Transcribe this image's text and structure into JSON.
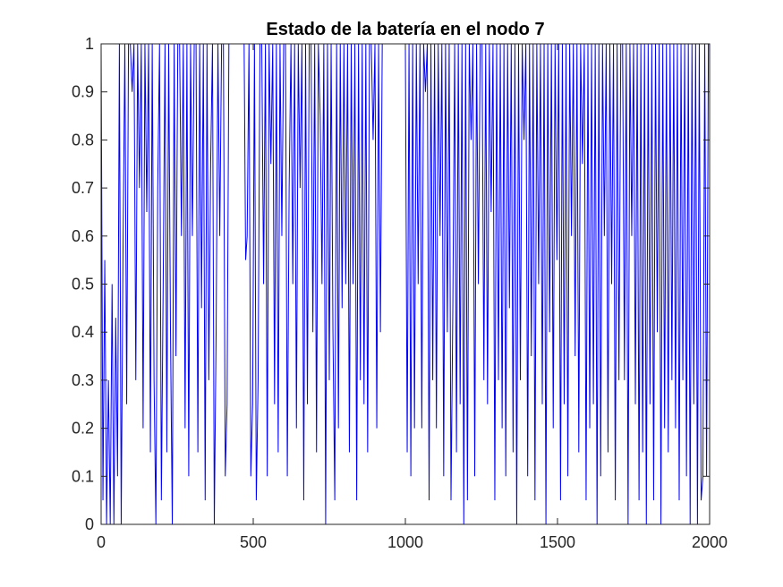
{
  "chart_data": {
    "type": "line",
    "title": "Estado de la batería en el nodo 7",
    "xlabel": "",
    "ylabel": "",
    "xlim": [
      0,
      2000
    ],
    "ylim": [
      0,
      1
    ],
    "x_ticks": [
      "0",
      "500",
      "1000",
      "1500",
      "2000"
    ],
    "y_ticks": [
      "0",
      "0.1",
      "0.2",
      "0.3",
      "0.4",
      "0.5",
      "0.6",
      "0.7",
      "0.8",
      "0.9",
      "1"
    ],
    "grid": false,
    "legend": "none",
    "series_color": "#0000ff",
    "series": [
      {
        "x": [
          0,
          6,
          12,
          18,
          24,
          30,
          36,
          42,
          48,
          54,
          60,
          66,
          72,
          78,
          84,
          90,
          96,
          102,
          108,
          114,
          120,
          126,
          132,
          138,
          144,
          150,
          156,
          162,
          168,
          174,
          180,
          186,
          192,
          198,
          204,
          210,
          216,
          222,
          228,
          234,
          240,
          246,
          252,
          258,
          264,
          270,
          276,
          282,
          288,
          294,
          300,
          306,
          312,
          318,
          324,
          330,
          336,
          342,
          348,
          354,
          360,
          366,
          372,
          378,
          384,
          390,
          396,
          402,
          408,
          414,
          420,
          430,
          440,
          450,
          460,
          470,
          475,
          480,
          486,
          492,
          498,
          504,
          510,
          516,
          522,
          528,
          534,
          540,
          546,
          552,
          558,
          564,
          570,
          576,
          582,
          588,
          594,
          600,
          606,
          612,
          618,
          624,
          630,
          636,
          642,
          648,
          654,
          660,
          666,
          672,
          678,
          684,
          690,
          696,
          702,
          708,
          714,
          720,
          726,
          732,
          738,
          744,
          750,
          756,
          762,
          768,
          774,
          780,
          786,
          792,
          798,
          804,
          810,
          816,
          822,
          828,
          834,
          840,
          846,
          852,
          858,
          864,
          870,
          876,
          882,
          888,
          894,
          900,
          906,
          912,
          918,
          924,
          930,
          940,
          950,
          960,
          970,
          980,
          990,
          1000,
          1006,
          1012,
          1018,
          1024,
          1030,
          1036,
          1042,
          1048,
          1054,
          1060,
          1066,
          1072,
          1078,
          1084,
          1090,
          1096,
          1102,
          1108,
          1114,
          1120,
          1126,
          1132,
          1138,
          1144,
          1150,
          1156,
          1162,
          1168,
          1174,
          1180,
          1186,
          1192,
          1198,
          1204,
          1210,
          1216,
          1222,
          1228,
          1234,
          1240,
          1246,
          1252,
          1258,
          1264,
          1270,
          1276,
          1282,
          1288,
          1294,
          1300,
          1306,
          1312,
          1318,
          1324,
          1330,
          1336,
          1342,
          1348,
          1354,
          1360,
          1366,
          1372,
          1378,
          1384,
          1390,
          1396,
          1402,
          1408,
          1414,
          1420,
          1426,
          1432,
          1438,
          1444,
          1450,
          1456,
          1462,
          1468,
          1474,
          1480,
          1486,
          1492,
          1498,
          1504,
          1510,
          1516,
          1522,
          1528,
          1534,
          1540,
          1546,
          1552,
          1558,
          1564,
          1570,
          1576,
          1582,
          1588,
          1594,
          1600,
          1606,
          1612,
          1618,
          1624,
          1630,
          1636,
          1642,
          1648,
          1654,
          1660,
          1666,
          1672,
          1678,
          1684,
          1690,
          1696,
          1702,
          1708,
          1714,
          1720,
          1726,
          1732,
          1738,
          1744,
          1750,
          1756,
          1762,
          1768,
          1774,
          1780,
          1786,
          1792,
          1798,
          1804,
          1810,
          1816,
          1822,
          1828,
          1834,
          1840,
          1846,
          1852,
          1858,
          1864,
          1870,
          1876,
          1882,
          1888,
          1894,
          1900,
          1906,
          1912,
          1918,
          1924,
          1930,
          1936,
          1942,
          1948,
          1954,
          1960,
          1966,
          1972,
          1978,
          1984,
          1990,
          1996,
          2000
        ],
        "y": [
          1,
          0.05,
          0.55,
          0,
          0.3,
          0,
          0.5,
          0,
          0.43,
          0.1,
          1,
          0,
          0.57,
          1,
          0.25,
          1,
          1,
          0.9,
          1,
          0.3,
          1,
          0.7,
          1,
          0.2,
          1,
          0.65,
          1,
          0.15,
          1,
          0.3,
          0,
          0.7,
          1,
          0.05,
          0.5,
          1,
          0.15,
          1,
          0.4,
          0,
          1,
          0.35,
          1,
          1,
          0.6,
          1,
          0.2,
          1,
          0.1,
          1,
          0.6,
          1,
          1,
          0.15,
          1,
          0.45,
          1,
          0.05,
          1,
          0.3,
          0.75,
          1,
          0,
          0.4,
          1,
          0.6,
          1,
          1,
          0.1,
          0.25,
          1,
          1,
          1,
          1,
          1,
          1,
          0.55,
          0.6,
          1,
          0.1,
          0.25,
          1,
          0.05,
          0.3,
          1,
          1,
          0.5,
          1,
          0.1,
          1,
          0.75,
          1,
          0.25,
          1,
          0.15,
          1,
          0.6,
          1,
          1,
          0.1,
          0.7,
          1,
          0.5,
          1,
          0.2,
          1,
          0.7,
          1,
          0.05,
          1,
          0.25,
          1,
          1,
          0.4,
          1,
          0.15,
          1,
          0.85,
          0.5,
          1,
          0,
          1,
          0.3,
          1,
          0.4,
          0.05,
          1,
          0.2,
          1,
          0.45,
          1,
          0.5,
          1,
          0.15,
          1,
          0.5,
          1,
          0.05,
          1,
          0.3,
          1,
          0.25,
          1,
          0.15,
          1,
          1,
          0.8,
          1,
          0.2,
          1,
          0.4,
          1,
          1,
          1,
          1,
          1,
          1,
          1,
          1,
          1,
          0.15,
          1,
          0.1,
          1,
          0.2,
          1,
          0.5,
          1,
          0.2,
          1,
          0.9,
          1,
          0.05,
          1,
          0.3,
          1,
          0.2,
          1,
          0.6,
          1,
          0.1,
          1,
          0.4,
          1,
          0.05,
          0.45,
          1,
          0.15,
          1,
          0.25,
          1,
          0,
          1,
          0.05,
          1,
          0.8,
          1,
          0.1,
          1,
          0.5,
          1,
          1,
          0.3,
          1,
          0.25,
          1,
          0.65,
          1,
          0.05,
          1,
          0.3,
          1,
          0.2,
          1,
          0.1,
          1,
          0.45,
          1,
          0.15,
          1,
          0,
          1,
          0.3,
          1,
          0.8,
          1,
          0.1,
          1,
          0.35,
          1,
          0.05,
          1,
          0.5,
          1,
          0.25,
          1,
          0,
          1,
          0.4,
          1,
          0.2,
          1,
          0.55,
          1,
          0.05,
          1,
          0.25,
          1,
          0.1,
          1,
          0.6,
          1,
          0.35,
          1,
          0.15,
          1,
          0.75,
          1,
          0.05,
          1,
          0.2,
          1,
          0.25,
          1,
          0,
          1,
          0.1,
          1,
          0.6,
          1,
          0.15,
          1,
          0.5,
          1,
          0.05,
          1,
          0.3,
          1,
          1,
          0.3,
          1,
          0,
          1,
          0.6,
          1,
          0.25,
          1,
          0.05,
          1,
          0.15,
          1,
          0,
          1,
          0.25,
          1,
          0.05,
          1,
          0.4,
          1,
          0,
          1,
          0.2,
          1,
          0.15,
          1,
          0.3,
          1,
          0.2,
          1,
          0.05,
          1,
          0.3,
          1,
          0.1,
          1,
          0,
          1,
          0.25,
          1,
          0,
          1,
          0.05,
          0.1,
          1,
          0.1,
          1,
          1
        ]
      }
    ]
  }
}
